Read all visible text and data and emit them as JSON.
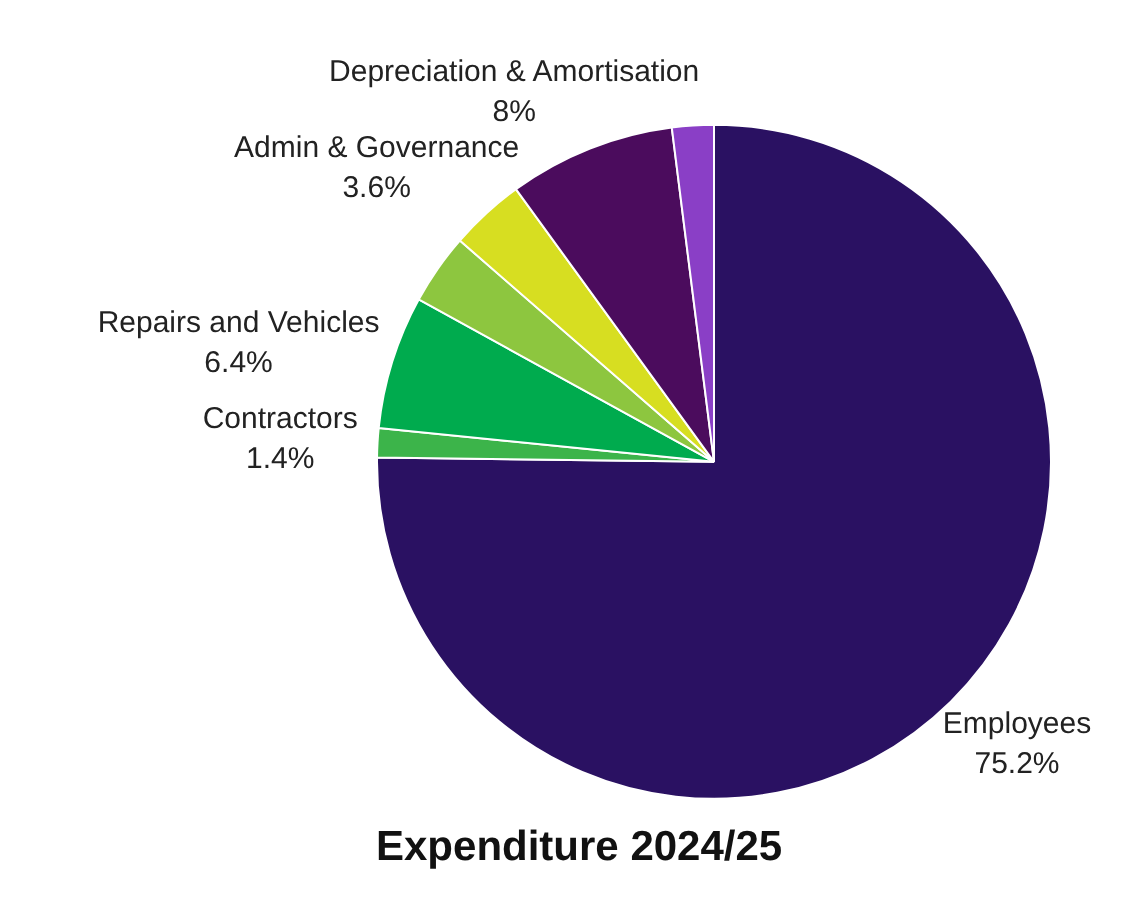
{
  "chart_data": {
    "type": "pie",
    "title": "Expenditure 2024/25",
    "categories": [
      "Employees",
      "Contractors",
      "Repairs and Vehicles",
      null,
      "Admin & Governance",
      "Depreciation & Amortisation",
      null
    ],
    "values": [
      75.2,
      1.4,
      6.4,
      3.4,
      3.6,
      8,
      2.0
    ],
    "value_labels": [
      "75.2%",
      "1.4%",
      "6.4%",
      null,
      "3.6%",
      "8%",
      null
    ],
    "colors": [
      "#2a1162",
      "#3cb44a",
      "#00ab4e",
      "#8dc63f",
      "#d7de21",
      "#4b0c5d",
      "#8a3fc6"
    ],
    "legend": false
  }
}
